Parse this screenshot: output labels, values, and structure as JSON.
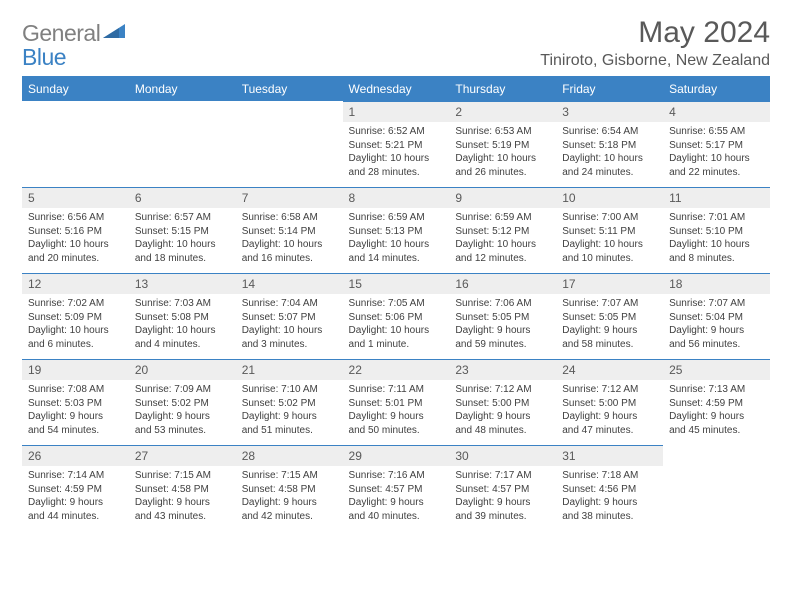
{
  "brand": {
    "general": "General",
    "blue": "Blue"
  },
  "title": "May 2024",
  "location": "Tiniroto, Gisborne, New Zealand",
  "dayHeaders": [
    "Sunday",
    "Monday",
    "Tuesday",
    "Wednesday",
    "Thursday",
    "Friday",
    "Saturday"
  ],
  "colors": {
    "accent": "#3b82c4",
    "grey_text": "#595959",
    "cell_header_bg": "#eeeeee",
    "body_text": "#404040",
    "background": "#ffffff"
  },
  "weeks": [
    [
      {
        "blank": true
      },
      {
        "blank": true
      },
      {
        "blank": true
      },
      {
        "day": "1",
        "sunrise": "Sunrise: 6:52 AM",
        "sunset": "Sunset: 5:21 PM",
        "daylight1": "Daylight: 10 hours",
        "daylight2": "and 28 minutes."
      },
      {
        "day": "2",
        "sunrise": "Sunrise: 6:53 AM",
        "sunset": "Sunset: 5:19 PM",
        "daylight1": "Daylight: 10 hours",
        "daylight2": "and 26 minutes."
      },
      {
        "day": "3",
        "sunrise": "Sunrise: 6:54 AM",
        "sunset": "Sunset: 5:18 PM",
        "daylight1": "Daylight: 10 hours",
        "daylight2": "and 24 minutes."
      },
      {
        "day": "4",
        "sunrise": "Sunrise: 6:55 AM",
        "sunset": "Sunset: 5:17 PM",
        "daylight1": "Daylight: 10 hours",
        "daylight2": "and 22 minutes."
      }
    ],
    [
      {
        "day": "5",
        "sunrise": "Sunrise: 6:56 AM",
        "sunset": "Sunset: 5:16 PM",
        "daylight1": "Daylight: 10 hours",
        "daylight2": "and 20 minutes."
      },
      {
        "day": "6",
        "sunrise": "Sunrise: 6:57 AM",
        "sunset": "Sunset: 5:15 PM",
        "daylight1": "Daylight: 10 hours",
        "daylight2": "and 18 minutes."
      },
      {
        "day": "7",
        "sunrise": "Sunrise: 6:58 AM",
        "sunset": "Sunset: 5:14 PM",
        "daylight1": "Daylight: 10 hours",
        "daylight2": "and 16 minutes."
      },
      {
        "day": "8",
        "sunrise": "Sunrise: 6:59 AM",
        "sunset": "Sunset: 5:13 PM",
        "daylight1": "Daylight: 10 hours",
        "daylight2": "and 14 minutes."
      },
      {
        "day": "9",
        "sunrise": "Sunrise: 6:59 AM",
        "sunset": "Sunset: 5:12 PM",
        "daylight1": "Daylight: 10 hours",
        "daylight2": "and 12 minutes."
      },
      {
        "day": "10",
        "sunrise": "Sunrise: 7:00 AM",
        "sunset": "Sunset: 5:11 PM",
        "daylight1": "Daylight: 10 hours",
        "daylight2": "and 10 minutes."
      },
      {
        "day": "11",
        "sunrise": "Sunrise: 7:01 AM",
        "sunset": "Sunset: 5:10 PM",
        "daylight1": "Daylight: 10 hours",
        "daylight2": "and 8 minutes."
      }
    ],
    [
      {
        "day": "12",
        "sunrise": "Sunrise: 7:02 AM",
        "sunset": "Sunset: 5:09 PM",
        "daylight1": "Daylight: 10 hours",
        "daylight2": "and 6 minutes."
      },
      {
        "day": "13",
        "sunrise": "Sunrise: 7:03 AM",
        "sunset": "Sunset: 5:08 PM",
        "daylight1": "Daylight: 10 hours",
        "daylight2": "and 4 minutes."
      },
      {
        "day": "14",
        "sunrise": "Sunrise: 7:04 AM",
        "sunset": "Sunset: 5:07 PM",
        "daylight1": "Daylight: 10 hours",
        "daylight2": "and 3 minutes."
      },
      {
        "day": "15",
        "sunrise": "Sunrise: 7:05 AM",
        "sunset": "Sunset: 5:06 PM",
        "daylight1": "Daylight: 10 hours",
        "daylight2": "and 1 minute."
      },
      {
        "day": "16",
        "sunrise": "Sunrise: 7:06 AM",
        "sunset": "Sunset: 5:05 PM",
        "daylight1": "Daylight: 9 hours",
        "daylight2": "and 59 minutes."
      },
      {
        "day": "17",
        "sunrise": "Sunrise: 7:07 AM",
        "sunset": "Sunset: 5:05 PM",
        "daylight1": "Daylight: 9 hours",
        "daylight2": "and 58 minutes."
      },
      {
        "day": "18",
        "sunrise": "Sunrise: 7:07 AM",
        "sunset": "Sunset: 5:04 PM",
        "daylight1": "Daylight: 9 hours",
        "daylight2": "and 56 minutes."
      }
    ],
    [
      {
        "day": "19",
        "sunrise": "Sunrise: 7:08 AM",
        "sunset": "Sunset: 5:03 PM",
        "daylight1": "Daylight: 9 hours",
        "daylight2": "and 54 minutes."
      },
      {
        "day": "20",
        "sunrise": "Sunrise: 7:09 AM",
        "sunset": "Sunset: 5:02 PM",
        "daylight1": "Daylight: 9 hours",
        "daylight2": "and 53 minutes."
      },
      {
        "day": "21",
        "sunrise": "Sunrise: 7:10 AM",
        "sunset": "Sunset: 5:02 PM",
        "daylight1": "Daylight: 9 hours",
        "daylight2": "and 51 minutes."
      },
      {
        "day": "22",
        "sunrise": "Sunrise: 7:11 AM",
        "sunset": "Sunset: 5:01 PM",
        "daylight1": "Daylight: 9 hours",
        "daylight2": "and 50 minutes."
      },
      {
        "day": "23",
        "sunrise": "Sunrise: 7:12 AM",
        "sunset": "Sunset: 5:00 PM",
        "daylight1": "Daylight: 9 hours",
        "daylight2": "and 48 minutes."
      },
      {
        "day": "24",
        "sunrise": "Sunrise: 7:12 AM",
        "sunset": "Sunset: 5:00 PM",
        "daylight1": "Daylight: 9 hours",
        "daylight2": "and 47 minutes."
      },
      {
        "day": "25",
        "sunrise": "Sunrise: 7:13 AM",
        "sunset": "Sunset: 4:59 PM",
        "daylight1": "Daylight: 9 hours",
        "daylight2": "and 45 minutes."
      }
    ],
    [
      {
        "day": "26",
        "sunrise": "Sunrise: 7:14 AM",
        "sunset": "Sunset: 4:59 PM",
        "daylight1": "Daylight: 9 hours",
        "daylight2": "and 44 minutes."
      },
      {
        "day": "27",
        "sunrise": "Sunrise: 7:15 AM",
        "sunset": "Sunset: 4:58 PM",
        "daylight1": "Daylight: 9 hours",
        "daylight2": "and 43 minutes."
      },
      {
        "day": "28",
        "sunrise": "Sunrise: 7:15 AM",
        "sunset": "Sunset: 4:58 PM",
        "daylight1": "Daylight: 9 hours",
        "daylight2": "and 42 minutes."
      },
      {
        "day": "29",
        "sunrise": "Sunrise: 7:16 AM",
        "sunset": "Sunset: 4:57 PM",
        "daylight1": "Daylight: 9 hours",
        "daylight2": "and 40 minutes."
      },
      {
        "day": "30",
        "sunrise": "Sunrise: 7:17 AM",
        "sunset": "Sunset: 4:57 PM",
        "daylight1": "Daylight: 9 hours",
        "daylight2": "and 39 minutes."
      },
      {
        "day": "31",
        "sunrise": "Sunrise: 7:18 AM",
        "sunset": "Sunset: 4:56 PM",
        "daylight1": "Daylight: 9 hours",
        "daylight2": "and 38 minutes."
      },
      {
        "blank": true
      }
    ]
  ]
}
